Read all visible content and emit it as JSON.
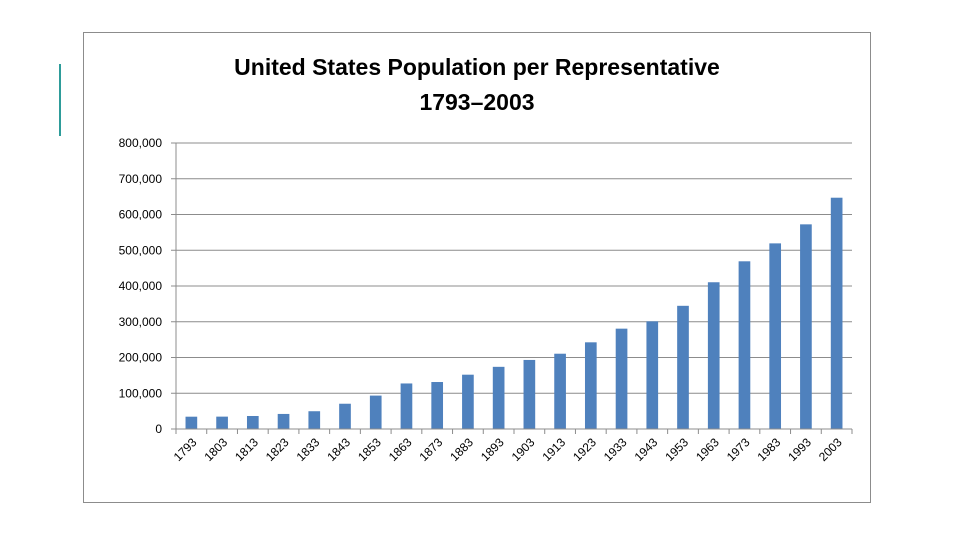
{
  "chart_data": {
    "type": "bar",
    "title": "United States Population per Representative",
    "subtitle": "1793–2003",
    "xlabel": "",
    "ylabel": "",
    "ylim": [
      0,
      800000
    ],
    "yticks": [
      0,
      100000,
      200000,
      300000,
      400000,
      500000,
      600000,
      700000,
      800000
    ],
    "ytick_labels": [
      "0",
      "100,000",
      "200,000",
      "300,000",
      "400,000",
      "500,000",
      "600,000",
      "700,000",
      "800,000"
    ],
    "grid": true,
    "legend": "none",
    "bar_color": "#4f81bd",
    "categories": [
      "1793",
      "1803",
      "1813",
      "1823",
      "1833",
      "1843",
      "1853",
      "1863",
      "1873",
      "1883",
      "1893",
      "1903",
      "1913",
      "1923",
      "1933",
      "1943",
      "1953",
      "1963",
      "1973",
      "1983",
      "1993",
      "2003"
    ],
    "values": [
      34436,
      34609,
      36377,
      42124,
      49712,
      70680,
      93423,
      127381,
      131425,
      151912,
      173901,
      193167,
      210583,
      242467,
      280675,
      301164,
      344587,
      410481,
      469088,
      519235,
      572466,
      646952
    ]
  },
  "colors": {
    "accent": "#2e9c9a",
    "frame": "#8c8c8c",
    "grid": "#8c8c8c"
  }
}
